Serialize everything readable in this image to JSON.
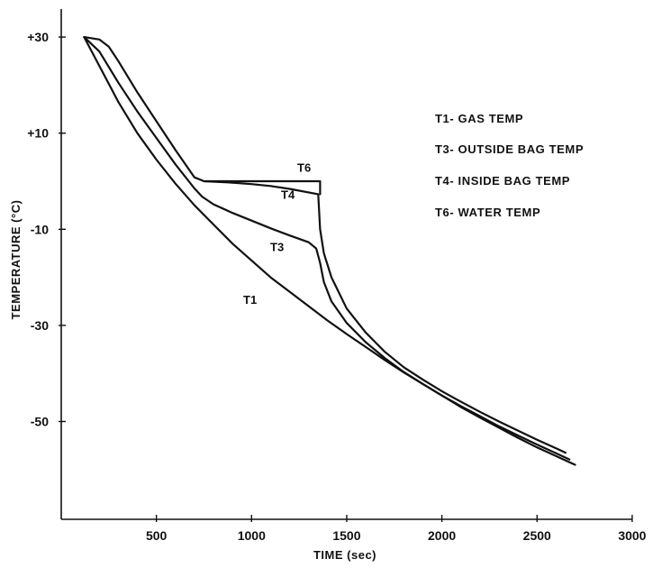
{
  "chart_data": {
    "type": "line",
    "title": "",
    "xlabel": "TIME (sec)",
    "ylabel": "TEMPERATURE (°C)",
    "xlim": [
      0,
      3000
    ],
    "ylim": [
      -70,
      33
    ],
    "x_ticks": [
      500,
      1000,
      1500,
      2000,
      2500,
      3000
    ],
    "y_ticks": [
      30,
      10,
      -10,
      -30,
      -50
    ],
    "x_tick_labels": [
      "500",
      "1000",
      "1500",
      "2000",
      "2500",
      "3000"
    ],
    "y_tick_labels": [
      "+30",
      "+10",
      "-10",
      "-30",
      "-50"
    ],
    "grid": false,
    "legend_position": "right",
    "legend": [
      "T1- GAS TEMP",
      "T3- OUTSIDE BAG TEMP",
      "T4- INSIDE BAG TEMP",
      "T6- WATER TEMP"
    ],
    "series": [
      {
        "name": "T1",
        "label": "T1",
        "points": [
          [
            120,
            30
          ],
          [
            200,
            24
          ],
          [
            300,
            16.5
          ],
          [
            400,
            10
          ],
          [
            500,
            4.5
          ],
          [
            600,
            -0.5
          ],
          [
            700,
            -5
          ],
          [
            800,
            -9
          ],
          [
            900,
            -13
          ],
          [
            1000,
            -16.5
          ],
          [
            1100,
            -20
          ],
          [
            1200,
            -23
          ],
          [
            1300,
            -26
          ],
          [
            1400,
            -29
          ],
          [
            1500,
            -31.8
          ],
          [
            1600,
            -34.5
          ],
          [
            1700,
            -37.2
          ],
          [
            1800,
            -39.8
          ],
          [
            1900,
            -42.2
          ],
          [
            2000,
            -44.6
          ],
          [
            2100,
            -47
          ],
          [
            2200,
            -49.2
          ],
          [
            2300,
            -51.3
          ],
          [
            2400,
            -53.4
          ],
          [
            2500,
            -55.4
          ],
          [
            2600,
            -57.2
          ],
          [
            2700,
            -59
          ]
        ]
      },
      {
        "name": "T3",
        "label": "T3",
        "points": [
          [
            120,
            30
          ],
          [
            200,
            27
          ],
          [
            300,
            20.5
          ],
          [
            400,
            14.5
          ],
          [
            500,
            9
          ],
          [
            600,
            3.5
          ],
          [
            700,
            -1.5
          ],
          [
            740,
            -3.2
          ],
          [
            800,
            -4.8
          ],
          [
            900,
            -6.6
          ],
          [
            1000,
            -8.2
          ],
          [
            1100,
            -9.8
          ],
          [
            1200,
            -11.3
          ],
          [
            1300,
            -12.7
          ],
          [
            1340,
            -14
          ],
          [
            1360,
            -17
          ],
          [
            1380,
            -21
          ],
          [
            1420,
            -25
          ],
          [
            1500,
            -29.5
          ],
          [
            1600,
            -33.5
          ],
          [
            1700,
            -36.8
          ],
          [
            1800,
            -39.7
          ],
          [
            1900,
            -42.2
          ],
          [
            2000,
            -44.6
          ],
          [
            2100,
            -46.8
          ],
          [
            2200,
            -48.9
          ],
          [
            2300,
            -51
          ],
          [
            2400,
            -52.9
          ],
          [
            2500,
            -54.8
          ],
          [
            2600,
            -56.6
          ],
          [
            2670,
            -57.9
          ]
        ]
      },
      {
        "name": "T4",
        "label": "T4",
        "points": [
          [
            120,
            30
          ],
          [
            200,
            29.5
          ],
          [
            250,
            28
          ],
          [
            300,
            25
          ],
          [
            400,
            18.5
          ],
          [
            500,
            12.5
          ],
          [
            600,
            6.5
          ],
          [
            700,
            0.8
          ],
          [
            750,
            0
          ],
          [
            900,
            -0.3
          ],
          [
            1000,
            -0.6
          ],
          [
            1100,
            -1
          ],
          [
            1200,
            -1.6
          ],
          [
            1350,
            -2.7
          ],
          [
            1360,
            -10
          ],
          [
            1380,
            -15
          ],
          [
            1420,
            -20
          ],
          [
            1500,
            -26.5
          ],
          [
            1600,
            -31.5
          ],
          [
            1700,
            -35.5
          ],
          [
            1800,
            -38.7
          ],
          [
            1900,
            -41.3
          ],
          [
            2000,
            -43.7
          ],
          [
            2100,
            -45.9
          ],
          [
            2200,
            -48
          ],
          [
            2300,
            -50
          ],
          [
            2400,
            -51.9
          ],
          [
            2500,
            -53.8
          ],
          [
            2600,
            -55.6
          ],
          [
            2650,
            -56.5
          ]
        ]
      },
      {
        "name": "T6",
        "label": "T6",
        "points": [
          [
            750,
            0
          ],
          [
            1360,
            0
          ],
          [
            1360,
            -2.7
          ]
        ]
      }
    ]
  }
}
